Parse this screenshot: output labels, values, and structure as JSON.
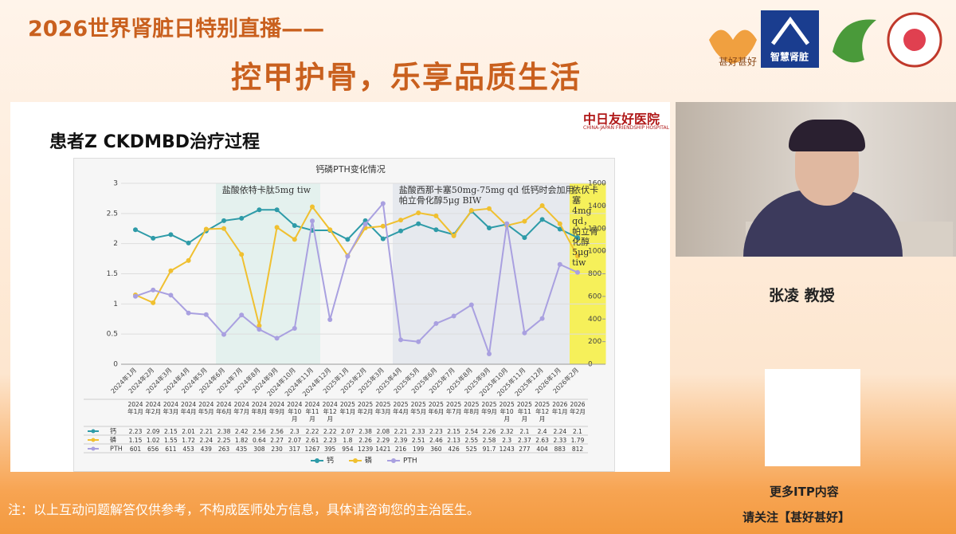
{
  "header": {
    "title_line1": "2026世界肾脏日特别直播——",
    "title_line2": "控甲护骨，乐享品质生活",
    "logos": [
      "甚好甚好",
      "智慧肾脏"
    ]
  },
  "slide": {
    "title": "患者Z CKDMBD治疗过程",
    "hospital": "中日友好医院",
    "hospital_en": "CHINA-JAPAN FRIENDSHIP HOSPITAL"
  },
  "chart_data": {
    "type": "line",
    "title": "钙磷PTH变化情况",
    "categories": [
      "2024年1月",
      "2024年2月",
      "2024年3月",
      "2024年4月",
      "2024年5月",
      "2024年6月",
      "2024年7月",
      "2024年8月",
      "2024年9月",
      "2024年10月",
      "2024年11月",
      "2024年12月",
      "2025年1月",
      "2025年2月",
      "2025年3月",
      "2025年4月",
      "2025年5月",
      "2025年6月",
      "2025年7月",
      "2025年8月",
      "2025年9月",
      "2025年10月",
      "2025年11月",
      "2025年12月",
      "2026年1月",
      "2026年2月"
    ],
    "series": [
      {
        "name": "钙",
        "color": "#2e9ba8",
        "values": [
          2.23,
          2.09,
          2.15,
          2.01,
          2.21,
          2.38,
          2.42,
          2.56,
          2.56,
          2.3,
          2.22,
          2.22,
          2.07,
          2.38,
          2.08,
          2.21,
          2.33,
          2.23,
          2.15,
          2.54,
          2.26,
          2.32,
          2.1,
          2.4,
          2.24,
          2.1
        ]
      },
      {
        "name": "磷",
        "color": "#f0c030",
        "values": [
          1.15,
          1.02,
          1.55,
          1.72,
          2.24,
          2.25,
          1.82,
          0.64,
          2.27,
          2.07,
          2.61,
          2.23,
          1.8,
          2.26,
          2.29,
          2.39,
          2.51,
          2.46,
          2.13,
          2.55,
          2.58,
          2.3,
          2.37,
          2.63,
          2.33,
          1.79
        ]
      },
      {
        "name": "PTH",
        "color": "#a9a0e0",
        "axis": "y2",
        "values": [
          601,
          656,
          611,
          453,
          439,
          263,
          435,
          308,
          230,
          317,
          1267,
          395,
          954,
          1239,
          1421,
          216,
          199,
          360,
          426,
          525,
          91.7,
          1243,
          277,
          404,
          883,
          812
        ]
      }
    ],
    "ylim": [
      0,
      3
    ],
    "yticks": [
      0,
      0.5,
      1,
      1.5,
      2,
      2.5,
      3
    ],
    "y2lim": [
      0,
      1600
    ],
    "y2ticks": [
      0,
      200,
      400,
      600,
      800,
      1000,
      1200,
      1400,
      1600
    ],
    "grid": true,
    "annotations": [
      "盐酸依特卡肽5mg tiw",
      "盐酸西那卡塞50mg-75mg qd 低钙时会加用帕立骨化醇5μg BIW",
      "依伏卡塞4mg qd，帕立骨化醇5μg tiw"
    ]
  },
  "speaker": {
    "name": "张凌 教授"
  },
  "promo": {
    "line1": "更多ITP内容",
    "line2": "请关注【甚好甚好】"
  },
  "footer": {
    "note": "注：以上互动问题解答仅供参考，不构成医师处方信息，具体请咨询您的主治医生。"
  }
}
